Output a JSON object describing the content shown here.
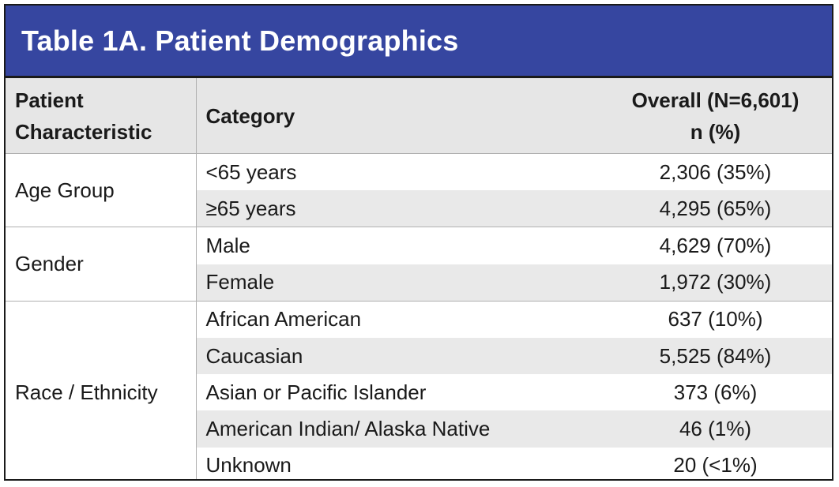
{
  "title": "Table 1A. Patient Demographics",
  "headers": {
    "characteristic_line1": "Patient",
    "characteristic_line2": "Characteristic",
    "category": "Category",
    "overall_line1": "Overall (N=6,601)",
    "overall_line2": "n (%)"
  },
  "groups": [
    {
      "characteristic": "Age Group",
      "rows": [
        {
          "category": "<65 years",
          "value": "2,306 (35%)"
        },
        {
          "category": "≥65 years",
          "value": "4,295 (65%)"
        }
      ]
    },
    {
      "characteristic": "Gender",
      "rows": [
        {
          "category": "Male",
          "value": "4,629 (70%)"
        },
        {
          "category": "Female",
          "value": "1,972 (30%)"
        }
      ]
    },
    {
      "characteristic": "Race / Ethnicity",
      "rows": [
        {
          "category": "African American",
          "value": "637 (10%)"
        },
        {
          "category": "Caucasian",
          "value": "5,525 (84%)"
        },
        {
          "category": "Asian or Pacific Islander",
          "value": "373 (6%)"
        },
        {
          "category": "American Indian/ Alaska Native",
          "value": "46 (1%)"
        },
        {
          "category": "Unknown",
          "value": "20 (<1%)"
        }
      ]
    }
  ],
  "colors": {
    "title_bar": "#3646a0",
    "header_bg": "#e6e6e6",
    "row_shade": "#e9e9e9"
  }
}
